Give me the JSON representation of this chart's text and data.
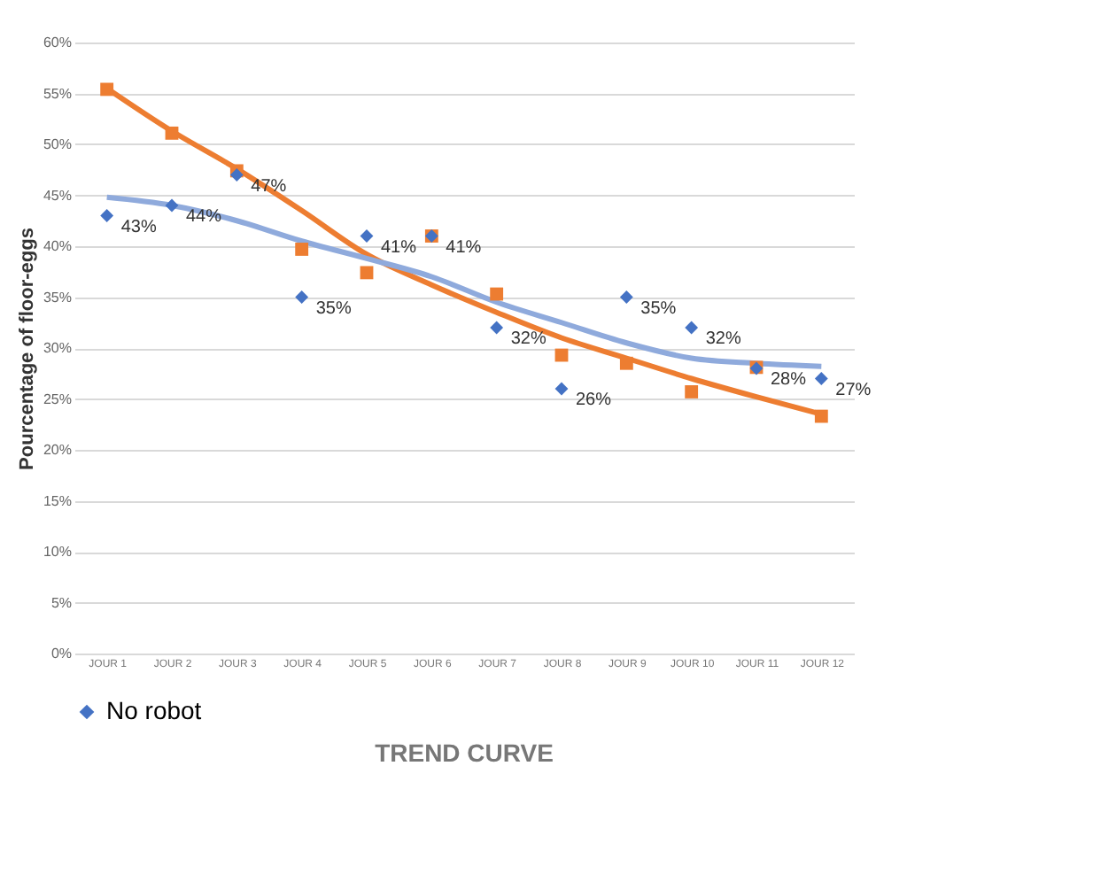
{
  "chart_data": {
    "type": "scatter",
    "title": "TREND CURVE",
    "ylabel": "Pourcentage of floor-eggs",
    "categories": [
      "JOUR 1",
      "JOUR 2",
      "JOUR 3",
      "JOUR 4",
      "JOUR 5",
      "JOUR 6",
      "JOUR 7",
      "JOUR 8",
      "JOUR 9",
      "JOUR 10",
      "JOUR 11",
      "JOUR 12"
    ],
    "series": [
      {
        "type": "line",
        "color": "#ed7d31",
        "values": [
          55.5,
          51.3,
          47.6,
          43.5,
          39.2,
          36.2,
          33.5,
          31,
          29,
          27,
          25.2,
          23.5
        ]
      },
      {
        "type": "line",
        "color": "#8faadc",
        "values": [
          44.8,
          44,
          42.5,
          40.5,
          38.8,
          37,
          34.5,
          32.5,
          30.5,
          29,
          28.5,
          28.2
        ]
      },
      {
        "color": "#ed7d31",
        "marker": "square",
        "values": [
          55.4,
          51.1,
          47.4,
          39.7,
          37.4,
          41,
          35.3,
          29.3,
          28.5,
          25.7,
          28.1,
          23.3
        ]
      },
      {
        "name": "No robot",
        "color": "#4472c4",
        "marker": "diamond",
        "values": [
          43,
          44,
          47,
          35,
          41,
          41,
          32,
          26,
          35,
          32,
          28,
          27
        ],
        "value_labels": [
          "43%",
          "44%",
          "47%",
          "35%",
          "41%",
          "41%",
          "32%",
          "26%",
          "35%",
          "32%",
          "28%",
          "27%"
        ]
      }
    ],
    "ylim": [
      0,
      60
    ],
    "yticks": [
      {
        "value": 0,
        "label": "0%"
      },
      {
        "value": 5,
        "label": "5%"
      },
      {
        "value": 10,
        "label": "10%"
      },
      {
        "value": 15,
        "label": "15%"
      },
      {
        "value": 20,
        "label": "20%"
      },
      {
        "value": 25,
        "label": "25%"
      },
      {
        "value": 30,
        "label": "30%"
      },
      {
        "value": 35,
        "label": "35%"
      },
      {
        "value": 40,
        "label": "40%"
      },
      {
        "value": 45,
        "label": "45%"
      },
      {
        "value": 50,
        "label": "50%"
      },
      {
        "value": 55,
        "label": "55%"
      },
      {
        "value": 60,
        "label": "60%"
      }
    ],
    "grid": "y",
    "legend": "bottom"
  }
}
